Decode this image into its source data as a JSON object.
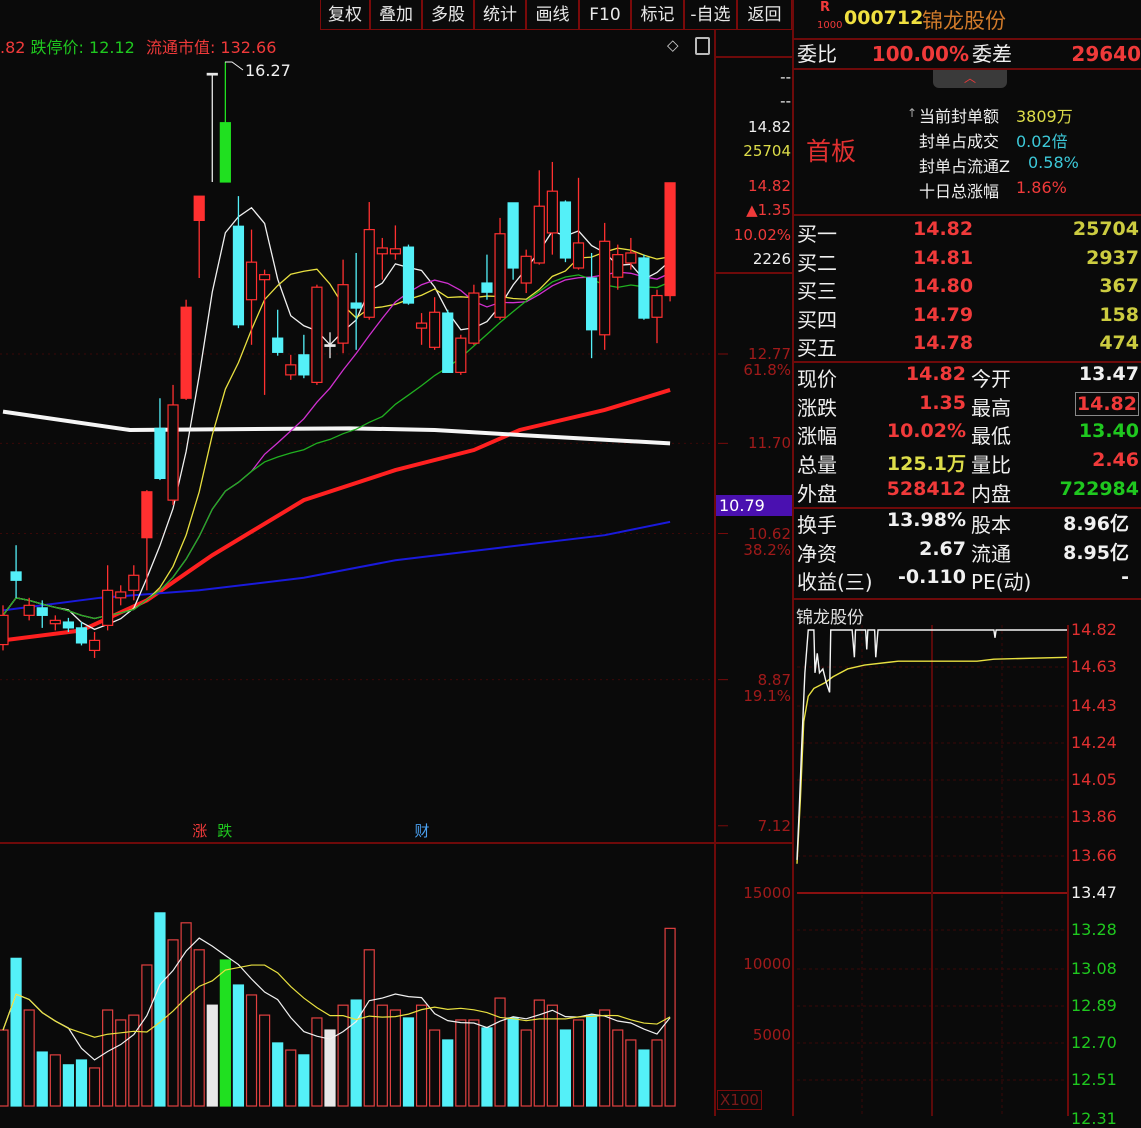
{
  "toolbar": {
    "buttons": [
      "复权",
      "叠加",
      "多股",
      "统计",
      "画线",
      "F10",
      "标记",
      "-自选",
      "返回"
    ]
  },
  "infoline": {
    "prev_fragment": ".82",
    "limit_down": "跌停价: 12.12",
    "float_cap": "流通市值: 132.66"
  },
  "header": {
    "badge_r": "R",
    "badge_num": "1000",
    "code": "000712",
    "name": "锦龙股份"
  },
  "weibi": {
    "label": "委比",
    "value": "100.00%",
    "diff_label": "委差",
    "diff_value": "29640"
  },
  "board": {
    "tag": "首板",
    "items": [
      {
        "label": "当前封单额",
        "value": "3809万",
        "color": "#dede4a"
      },
      {
        "label": "封单占成交",
        "value": "0.02倍",
        "color": "#3cc8d8"
      },
      {
        "label": "封单占流通Z",
        "value": "0.58%",
        "color": "#3cc8d8"
      },
      {
        "label": "十日总涨幅",
        "value": "1.86%",
        "color": "#f03a3a"
      }
    ]
  },
  "order_book": [
    {
      "label": "买一",
      "price": "14.82",
      "vol": "25704"
    },
    {
      "label": "买二",
      "price": "14.81",
      "vol": "2937"
    },
    {
      "label": "买三",
      "price": "14.80",
      "vol": "367"
    },
    {
      "label": "买四",
      "price": "14.79",
      "vol": "158"
    },
    {
      "label": "买五",
      "price": "14.78",
      "vol": "474"
    }
  ],
  "quote": [
    {
      "l1": "现价",
      "v1": "14.82",
      "c1": "#f03a3a",
      "l2": "今开",
      "v2": "13.47",
      "c2": "#f0f0f0"
    },
    {
      "l1": "涨跌",
      "v1": "1.35",
      "c1": "#f03a3a",
      "l2": "最高",
      "v2": "14.82",
      "c2": "#f03a3a"
    },
    {
      "l1": "涨幅",
      "v1": "10.02%",
      "c1": "#f03a3a",
      "l2": "最低",
      "v2": "13.40",
      "c2": "#1fc81f"
    },
    {
      "l1": "总量",
      "v1": "125.1万",
      "c1": "#dede4a",
      "l2": "量比",
      "v2": "2.46",
      "c2": "#f03a3a"
    },
    {
      "l1": "外盘",
      "v1": "528412",
      "c1": "#f03a3a",
      "l2": "内盘",
      "v2": "722984",
      "c2": "#1fc81f"
    }
  ],
  "fundamentals": [
    {
      "l1": "换手",
      "v1": "13.98%",
      "l2": "股本",
      "v2": "8.96亿"
    },
    {
      "l1": "净资",
      "v1": "2.67",
      "l2": "流通",
      "v2": "8.95亿"
    },
    {
      "l1": "收益(三)",
      "v1": "-0.110",
      "l2": "PE(动)",
      "v2": "-"
    }
  ],
  "side_axis_info": [
    {
      "text": "--",
      "color": "#f0f0f0"
    },
    {
      "text": "--",
      "color": "#f0f0f0"
    },
    {
      "text": "14.82",
      "color": "#f0f0f0"
    },
    {
      "text": "25704",
      "color": "#dede4a"
    },
    {
      "text": "14.82",
      "color": "#f03a3a"
    },
    {
      "text": "▲1.35",
      "color": "#f03a3a"
    },
    {
      "text": "10.02%",
      "color": "#f03a3a"
    },
    {
      "text": "2226",
      "color": "#f0f0f0"
    }
  ],
  "chart_data": [
    {
      "type": "candlestick",
      "high_annotation": "16.27",
      "price_axis": [
        {
          "v": "12.77",
          "pct": "61.8%"
        },
        {
          "v": "11.70",
          "pct": ""
        },
        {
          "v": "10.62",
          "pct": "38.2%"
        },
        {
          "v": "8.87",
          "pct": "19.1%"
        },
        {
          "v": "7.12",
          "pct": ""
        }
      ],
      "cursor_price": "10.79",
      "candles_fields": [
        "open",
        "high",
        "low",
        "close",
        "kind",
        "volume"
      ],
      "candles": [
        [
          9.29,
          9.76,
          9.22,
          9.64,
          "u",
          5350
        ],
        [
          10.16,
          10.48,
          9.85,
          10.06,
          "d",
          10400
        ],
        [
          9.64,
          9.85,
          9.58,
          9.76,
          "u",
          6760
        ],
        [
          9.73,
          9.82,
          9.49,
          9.64,
          "d",
          3800
        ],
        [
          9.54,
          9.64,
          9.46,
          9.58,
          "u",
          3600
        ],
        [
          9.56,
          9.61,
          9.44,
          9.49,
          "d",
          2900
        ],
        [
          9.49,
          9.56,
          9.28,
          9.31,
          "d",
          3240
        ],
        [
          9.22,
          9.44,
          9.13,
          9.34,
          "u",
          2680
        ],
        [
          9.52,
          10.24,
          9.46,
          9.94,
          "u",
          6760
        ],
        [
          9.85,
          10.0,
          9.76,
          9.92,
          "u",
          6060
        ],
        [
          9.94,
          10.24,
          9.82,
          10.12,
          "u",
          6400
        ],
        [
          10.57,
          11.14,
          9.94,
          11.12,
          "U",
          9930
        ],
        [
          11.88,
          12.24,
          11.26,
          11.28,
          "d",
          13600
        ],
        [
          11.02,
          12.4,
          10.96,
          12.16,
          "u",
          11700
        ],
        [
          12.24,
          13.42,
          12.22,
          13.33,
          "U",
          12900
        ],
        [
          14.37,
          14.66,
          13.68,
          14.66,
          "U",
          11000
        ],
        [
          16.13,
          16.13,
          14.83,
          16.13,
          "f",
          7100
        ],
        [
          15.54,
          16.27,
          14.83,
          14.83,
          "g",
          10280
        ],
        [
          14.3,
          14.66,
          13.08,
          13.12,
          "d",
          8520
        ],
        [
          13.42,
          14.26,
          12.88,
          13.87,
          "u",
          7820
        ],
        [
          13.66,
          13.78,
          12.28,
          13.72,
          "u",
          6400
        ],
        [
          12.96,
          13.3,
          12.75,
          12.79,
          "d",
          4440
        ],
        [
          12.52,
          12.76,
          12.46,
          12.64,
          "u",
          3940
        ],
        [
          12.76,
          13.0,
          12.48,
          12.52,
          "d",
          3600
        ],
        [
          12.43,
          13.6,
          12.4,
          13.57,
          "u",
          6200
        ],
        [
          12.88,
          13.03,
          12.72,
          12.88,
          "f",
          5350
        ],
        [
          12.9,
          13.9,
          12.78,
          13.6,
          "u",
          7100
        ],
        [
          13.38,
          13.98,
          12.82,
          13.32,
          "d",
          7460
        ],
        [
          13.21,
          14.59,
          13.18,
          14.26,
          "u",
          11000
        ],
        [
          13.97,
          14.16,
          13.66,
          14.04,
          "u",
          7100
        ],
        [
          13.97,
          14.31,
          13.9,
          14.03,
          "u",
          6760
        ],
        [
          14.05,
          14.08,
          13.36,
          13.38,
          "d",
          6200
        ],
        [
          13.08,
          13.26,
          12.88,
          13.14,
          "u",
          7100
        ],
        [
          12.85,
          13.45,
          12.82,
          13.27,
          "u",
          5350
        ],
        [
          13.26,
          13.3,
          12.55,
          12.55,
          "d",
          4650
        ],
        [
          12.55,
          13.0,
          12.52,
          12.96,
          "u",
          6060
        ],
        [
          12.9,
          13.6,
          12.88,
          13.5,
          "u",
          6060
        ],
        [
          13.62,
          13.96,
          13.42,
          13.51,
          "d",
          5500
        ],
        [
          13.21,
          14.4,
          13.18,
          14.21,
          "u",
          7600
        ],
        [
          14.58,
          14.58,
          13.66,
          13.8,
          "d",
          6200
        ],
        [
          13.62,
          14.02,
          13.5,
          13.94,
          "u",
          5350
        ],
        [
          13.86,
          14.97,
          13.84,
          14.54,
          "u",
          7460
        ],
        [
          14.22,
          15.07,
          13.96,
          14.72,
          "u",
          7100
        ],
        [
          14.59,
          14.61,
          13.87,
          13.92,
          "d",
          5350
        ],
        [
          13.8,
          14.88,
          13.78,
          14.1,
          "u",
          6060
        ],
        [
          13.68,
          13.98,
          12.72,
          13.06,
          "d",
          6400
        ],
        [
          13.0,
          14.34,
          12.82,
          14.12,
          "u",
          6760
        ],
        [
          13.69,
          14.08,
          13.54,
          13.96,
          "u",
          5350
        ],
        [
          13.86,
          14.16,
          13.78,
          13.98,
          "u",
          4650
        ],
        [
          13.92,
          13.96,
          13.18,
          13.2,
          "d",
          3940
        ],
        [
          13.21,
          13.54,
          12.9,
          13.47,
          "u",
          4650
        ],
        [
          13.47,
          14.82,
          13.4,
          14.82,
          "U",
          12510
        ]
      ],
      "long_ma": [
        {
          "color": "#ff2020",
          "points": [
            [
              0,
              9.34
            ],
            [
              6,
              9.46
            ],
            [
              11,
              9.82
            ],
            [
              16,
              10.36
            ],
            [
              23,
              11.02
            ],
            [
              30,
              11.38
            ],
            [
              36,
              11.62
            ],
            [
              39.5,
              11.86
            ],
            [
              46,
              12.1
            ],
            [
              51,
              12.34
            ]
          ]
        },
        {
          "color": "#1a1adc",
          "points": [
            [
              0,
              9.7
            ],
            [
              7.4,
              9.85
            ],
            [
              15,
              9.94
            ],
            [
              23,
              10.09
            ],
            [
              30,
              10.3
            ],
            [
              38,
              10.45
            ],
            [
              46,
              10.6
            ],
            [
              51,
              10.76
            ]
          ]
        },
        {
          "color": "#f5f5f5",
          "points": [
            [
              0,
              12.08
            ],
            [
              9.7,
              11.86
            ],
            [
              26.5,
              11.88
            ],
            [
              33,
              11.86
            ],
            [
              39.5,
              11.8
            ],
            [
              51,
              11.7
            ]
          ]
        }
      ],
      "short_ma": [
        {
          "period": 5,
          "color": "#f0f0f0"
        },
        {
          "period": 10,
          "color": "#e8e040"
        },
        {
          "period": 20,
          "color": "#d030d0"
        },
        {
          "period": 30,
          "color": "#20b020"
        }
      ],
      "event_markers": [
        {
          "text": "涨",
          "color": "#f03a3a",
          "index": 15
        },
        {
          "text": "跌",
          "color": "#1fc81f",
          "index": 16
        },
        {
          "text": "财",
          "color": "#4aa0f0",
          "index": 32
        }
      ]
    },
    {
      "type": "bar",
      "volume_axis": [
        "15000",
        "10000",
        "5000"
      ],
      "unit": "X100",
      "ma": [
        {
          "period": 5,
          "color": "#f0f0f0"
        },
        {
          "period": 10,
          "color": "#e8e040"
        }
      ]
    },
    {
      "type": "line",
      "title": "锦龙股份",
      "prev_close": 13.47,
      "y_ticks": [
        "14.82",
        "14.63",
        "14.43",
        "14.24",
        "14.05",
        "13.86",
        "13.66",
        "13.47",
        "13.28",
        "13.08",
        "12.89",
        "12.70",
        "12.51",
        "12.31"
      ],
      "price_points": [
        [
          0,
          13.64
        ],
        [
          2,
          13.9
        ],
        [
          4,
          14.2
        ],
        [
          7,
          14.6
        ],
        [
          10,
          14.82
        ],
        [
          15,
          14.82
        ],
        [
          16,
          14.6
        ],
        [
          18,
          14.7
        ],
        [
          20,
          14.6
        ],
        [
          23,
          14.62
        ],
        [
          26,
          14.55
        ],
        [
          29,
          14.5
        ],
        [
          30,
          14.82
        ],
        [
          49,
          14.82
        ],
        [
          51,
          14.68
        ],
        [
          52,
          14.82
        ],
        [
          61,
          14.82
        ],
        [
          62,
          14.72
        ],
        [
          63,
          14.82
        ],
        [
          69,
          14.82
        ],
        [
          70,
          14.68
        ],
        [
          72,
          14.82
        ],
        [
          175,
          14.82
        ],
        [
          176,
          14.78
        ],
        [
          177,
          14.82
        ],
        [
          240,
          14.82
        ]
      ],
      "avg_points": [
        [
          0,
          13.62
        ],
        [
          3,
          13.95
        ],
        [
          6,
          14.35
        ],
        [
          10,
          14.48
        ],
        [
          15,
          14.52
        ],
        [
          25,
          14.55
        ],
        [
          32,
          14.58
        ],
        [
          45,
          14.62
        ],
        [
          60,
          14.64
        ],
        [
          90,
          14.66
        ],
        [
          160,
          14.66
        ],
        [
          175,
          14.67
        ],
        [
          240,
          14.68
        ]
      ]
    }
  ]
}
